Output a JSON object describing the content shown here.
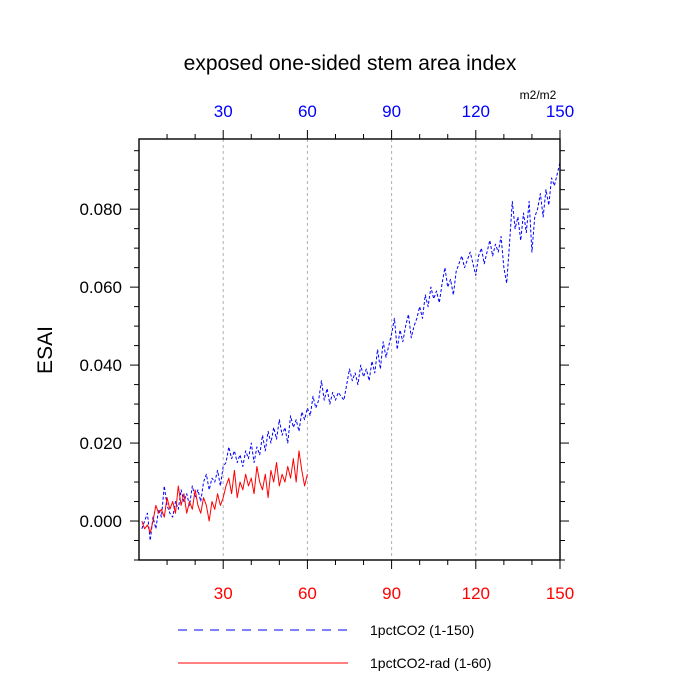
{
  "chart_data": {
    "type": "line",
    "title": "exposed one-sided stem area index",
    "ylabel": "ESAI",
    "units": "m2/m2",
    "xlim": [
      0,
      150
    ],
    "ylim": [
      -0.01,
      0.098
    ],
    "x_ticks": [
      30,
      60,
      90,
      120,
      150
    ],
    "y_ticks": [
      0.0,
      0.02,
      0.04,
      0.06,
      0.08
    ],
    "y_tick_labels": [
      "0.000",
      "0.020",
      "0.040",
      "0.060",
      "0.080"
    ],
    "y_minor_step": 0.005,
    "x_minor_step": 10,
    "grid": "vertical-dashed",
    "legend_placement": "bottom",
    "colors": {
      "top_axis": "#0000ff",
      "bottom_axis": "#ff0000",
      "grid": "#b0b0b0"
    },
    "series": [
      {
        "name": "1pctCO2 (1-150)",
        "color": "#0000ff",
        "dash": "dashed",
        "x_start": 1,
        "values": [
          -0.002,
          0.0,
          0.002,
          -0.005,
          0.001,
          -0.002,
          0.003,
          0.001,
          0.009,
          0.004,
          0.002,
          0.001,
          0.005,
          0.003,
          0.008,
          0.005,
          0.007,
          0.004,
          0.009,
          0.006,
          0.008,
          0.005,
          0.01,
          0.012,
          0.008,
          0.011,
          0.01,
          0.013,
          0.009,
          0.014,
          0.015,
          0.019,
          0.016,
          0.018,
          0.015,
          0.017,
          0.014,
          0.018,
          0.016,
          0.02,
          0.015,
          0.019,
          0.017,
          0.022,
          0.018,
          0.023,
          0.02,
          0.024,
          0.021,
          0.026,
          0.022,
          0.024,
          0.02,
          0.027,
          0.024,
          0.026,
          0.023,
          0.028,
          0.026,
          0.029,
          0.027,
          0.032,
          0.029,
          0.031,
          0.036,
          0.031,
          0.034,
          0.03,
          0.033,
          0.031,
          0.033,
          0.032,
          0.031,
          0.035,
          0.039,
          0.036,
          0.038,
          0.035,
          0.04,
          0.037,
          0.039,
          0.036,
          0.041,
          0.038,
          0.044,
          0.039,
          0.046,
          0.042,
          0.045,
          0.048,
          0.052,
          0.044,
          0.049,
          0.046,
          0.05,
          0.053,
          0.047,
          0.05,
          0.052,
          0.055,
          0.052,
          0.058,
          0.055,
          0.06,
          0.057,
          0.059,
          0.056,
          0.061,
          0.065,
          0.06,
          0.062,
          0.058,
          0.064,
          0.066,
          0.068,
          0.065,
          0.067,
          0.069,
          0.066,
          0.063,
          0.068,
          0.07,
          0.066,
          0.069,
          0.072,
          0.068,
          0.071,
          0.069,
          0.073,
          0.065,
          0.061,
          0.071,
          0.082,
          0.075,
          0.078,
          0.072,
          0.079,
          0.074,
          0.082,
          0.069,
          0.078,
          0.08,
          0.084,
          0.078,
          0.085,
          0.081,
          0.088,
          0.086,
          0.089,
          0.092
        ]
      },
      {
        "name": "1pctCO2-rad (1-60)",
        "color": "#ff0000",
        "dash": "solid",
        "x_start": 1,
        "values": [
          0.0,
          -0.002,
          -0.001,
          -0.003,
          0.0,
          0.004,
          0.002,
          0.003,
          0.001,
          0.006,
          0.003,
          0.005,
          0.002,
          0.009,
          0.004,
          0.007,
          0.002,
          0.005,
          0.003,
          0.008,
          0.004,
          0.002,
          0.006,
          0.004,
          0.0,
          0.005,
          0.003,
          0.007,
          0.004,
          0.006,
          0.009,
          0.011,
          0.007,
          0.013,
          0.006,
          0.01,
          0.008,
          0.012,
          0.009,
          0.011,
          0.007,
          0.014,
          0.01,
          0.008,
          0.012,
          0.006,
          0.013,
          0.01,
          0.015,
          0.009,
          0.012,
          0.01,
          0.014,
          0.011,
          0.016,
          0.01,
          0.018,
          0.013,
          0.009,
          0.012
        ]
      }
    ]
  }
}
